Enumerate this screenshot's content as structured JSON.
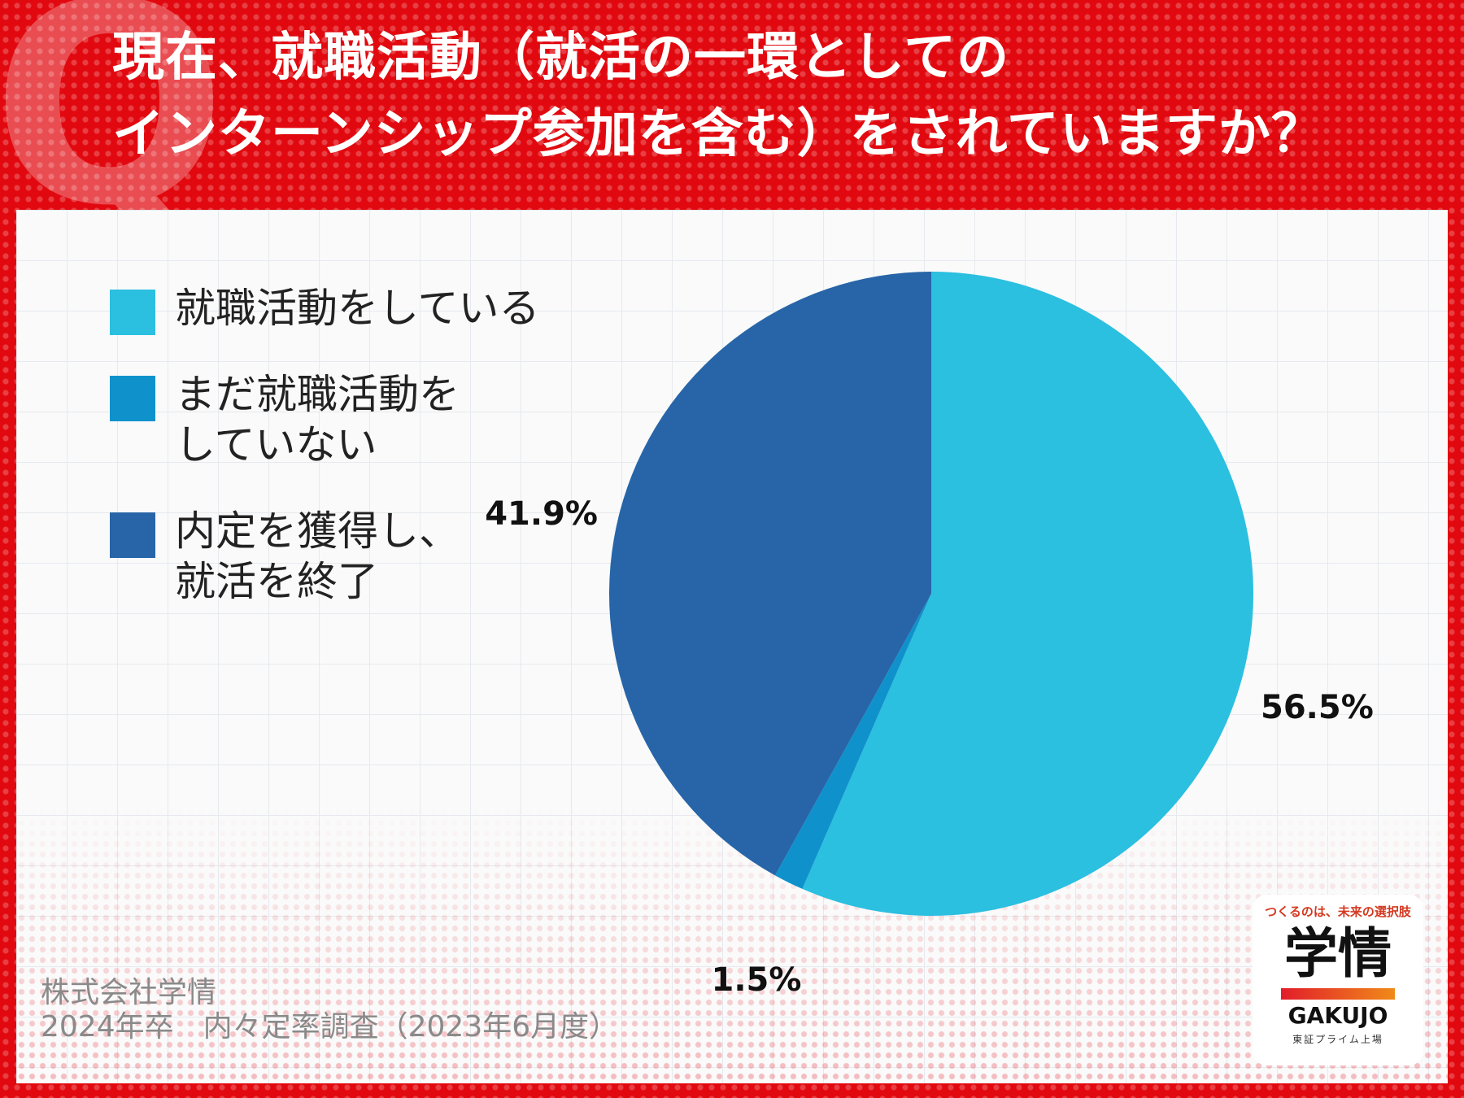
{
  "title_lines": [
    "現在、就職活動（就活の一環としての",
    "インターンシップ参加を含む）をされていますか？"
  ],
  "q_mark": "Q",
  "source_lines": [
    "株式会社学情",
    "2024年卒　内々定率調査（2023年6月度）"
  ],
  "logo": {
    "tagline": "つくるのは、未来の選択肢",
    "kanji": "学情",
    "en": "GAKUJO",
    "sub": "東証プライム上場"
  },
  "colors": {
    "background": "#e1090f",
    "slice1": "#2bbfe0",
    "slice2": "#0f92cc",
    "slice3": "#2765a8"
  },
  "chart_data": {
    "type": "pie",
    "categories": [
      "就職活動をしている",
      "まだ就職活動を\nしていない",
      "内定を獲得し、\n就活を終了"
    ],
    "values": [
      56.5,
      1.5,
      41.9
    ],
    "labels": [
      "56.5%",
      "1.5%",
      "41.9%"
    ],
    "start": "12 o'clock, clockwise",
    "legend_position": "left"
  }
}
